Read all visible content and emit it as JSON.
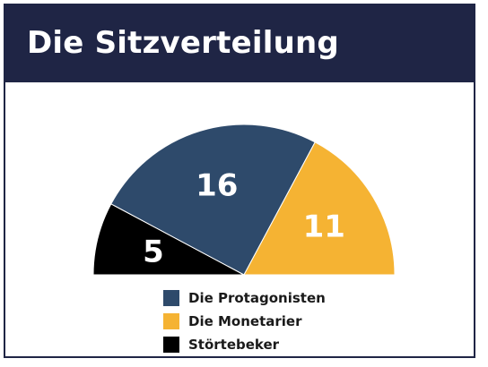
{
  "header": {
    "title": "Die Sitzverteilung"
  },
  "colors": {
    "header_bg": "#1f2545",
    "text_on_slice": "#ffffff"
  },
  "chart_data": {
    "type": "pie",
    "variant": "half-donut-semicircle",
    "title": "Die Sitzverteilung",
    "order": "left-to-right",
    "slices": [
      {
        "name": "Störtebeker",
        "value": 5,
        "color": "#000000"
      },
      {
        "name": "Die Protagonisten",
        "value": 16,
        "color": "#2e4a6b"
      },
      {
        "name": "Die Monetarier",
        "value": 11,
        "color": "#f5b333"
      }
    ],
    "legend": {
      "placement": "bottom",
      "entries": [
        {
          "label": "Die Protagonisten",
          "color": "#2e4a6b"
        },
        {
          "label": "Die Monetarier",
          "color": "#f5b333"
        },
        {
          "label": "Störtebeker",
          "color": "#000000"
        }
      ]
    }
  }
}
